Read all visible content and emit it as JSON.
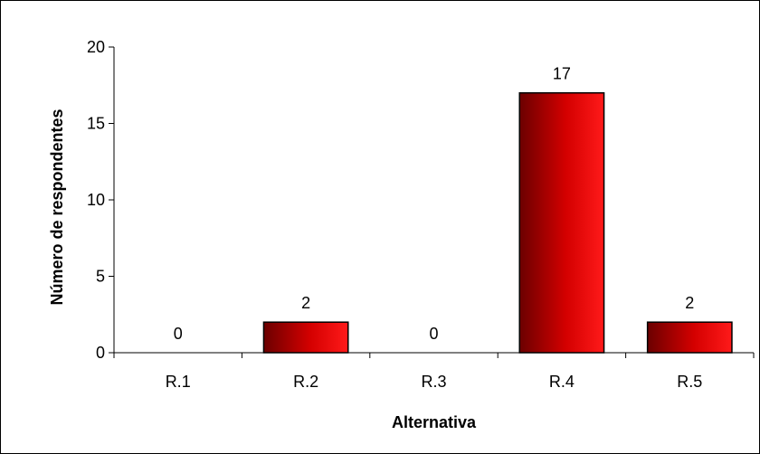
{
  "chart_data": {
    "type": "bar",
    "title": "",
    "xlabel": "Alternativa",
    "ylabel": "Número de respondentes",
    "categories": [
      "R.1",
      "R.2",
      "R.3",
      "R.4",
      "R.5"
    ],
    "values": [
      0,
      2,
      0,
      17,
      2
    ],
    "data_labels": [
      "0",
      "2",
      "0",
      "17",
      "2"
    ],
    "ylim": [
      0,
      20
    ],
    "yticks": [
      0,
      5,
      10,
      15,
      20
    ],
    "ytick_labels": [
      "0",
      "5",
      "10",
      "15",
      "20"
    ],
    "grid": false,
    "legend": "none",
    "colors": {
      "bar_dark": "#6b0000",
      "bar_mid": "#d40000",
      "bar_light": "#ff1a1a",
      "axis": "#000000",
      "frame": "#000000"
    }
  }
}
